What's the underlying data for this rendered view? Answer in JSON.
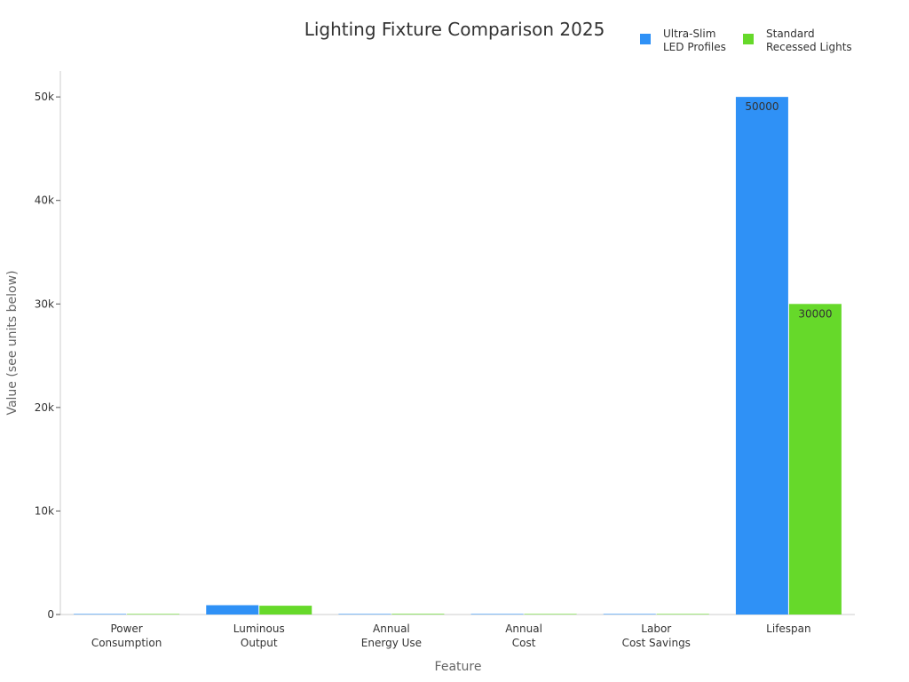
{
  "chart_data": {
    "type": "bar",
    "title": "Lighting Fixture Comparison 2025",
    "xlabel": "Feature",
    "ylabel": "Value (see units below)",
    "categories": [
      [
        "Power",
        "Consumption"
      ],
      [
        "Luminous",
        "Output"
      ],
      [
        "Annual",
        "Energy Use"
      ],
      [
        "Annual",
        "Cost"
      ],
      [
        "Labor",
        "Cost Savings"
      ],
      [
        "Lifespan"
      ]
    ],
    "series": [
      {
        "name": [
          "Ultra-Slim",
          "LED Profiles"
        ],
        "color": "#2f91f6",
        "values": [
          10,
          900,
          45,
          5,
          50,
          50000
        ],
        "data_labels": [
          "",
          "",
          "",
          "",
          "",
          "50000"
        ]
      },
      {
        "name": [
          "Standard",
          "Recessed Lights"
        ],
        "color": "#66d92a",
        "values": [
          15,
          850,
          60,
          8,
          0,
          30000
        ],
        "data_labels": [
          "",
          "",
          "",
          "",
          "",
          "30000"
        ]
      }
    ],
    "ylim": [
      0,
      52500
    ],
    "yticks": [
      0,
      10000,
      20000,
      30000,
      40000,
      50000
    ],
    "ytick_labels": [
      "0",
      "10k",
      "20k",
      "30k",
      "40k",
      "50k"
    ],
    "legend_position": "top-right",
    "grid": false
  }
}
